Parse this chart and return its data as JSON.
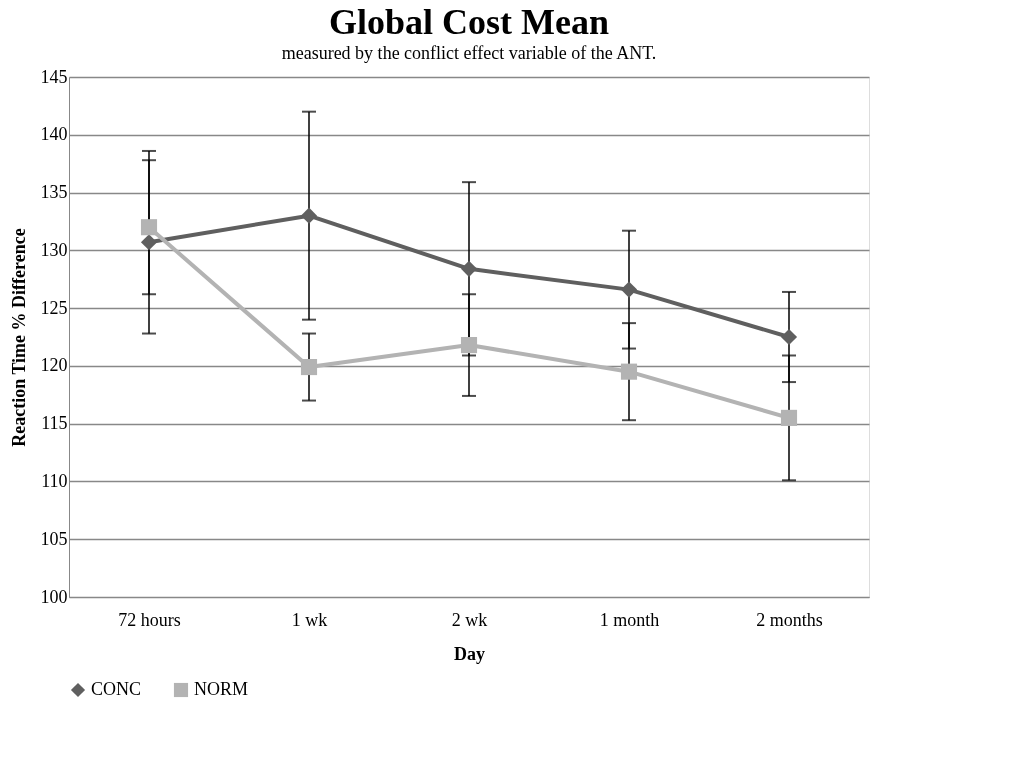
{
  "chart_data": {
    "type": "line",
    "title": "Global Cost Mean",
    "xlabel": "Day",
    "ylabel": "Reaction Time % Difference",
    "annotations": [
      "measured by the conflict effect variable of the ANT."
    ],
    "categories": [
      "72 hours",
      "1 wk",
      "2 wk",
      "1 month",
      "2 months"
    ],
    "series": [
      {
        "name": "CONC",
        "color": "#5f5f5f",
        "marker": "diamond",
        "values": [
          130.7,
          133.0,
          128.4,
          126.6,
          122.5
        ],
        "errors": [
          7.9,
          9.0,
          7.5,
          5.1,
          3.9
        ]
      },
      {
        "name": "NORM",
        "color": "#b3b3b3",
        "marker": "square",
        "values": [
          132.0,
          119.9,
          121.8,
          119.5,
          115.5
        ],
        "errors": [
          5.8,
          2.9,
          4.4,
          4.2,
          5.4
        ]
      }
    ],
    "ylim": [
      100,
      145
    ],
    "yticks": [
      100,
      105,
      110,
      115,
      120,
      125,
      130,
      135,
      140,
      145
    ],
    "grid": "y",
    "legend": "bottom left"
  }
}
